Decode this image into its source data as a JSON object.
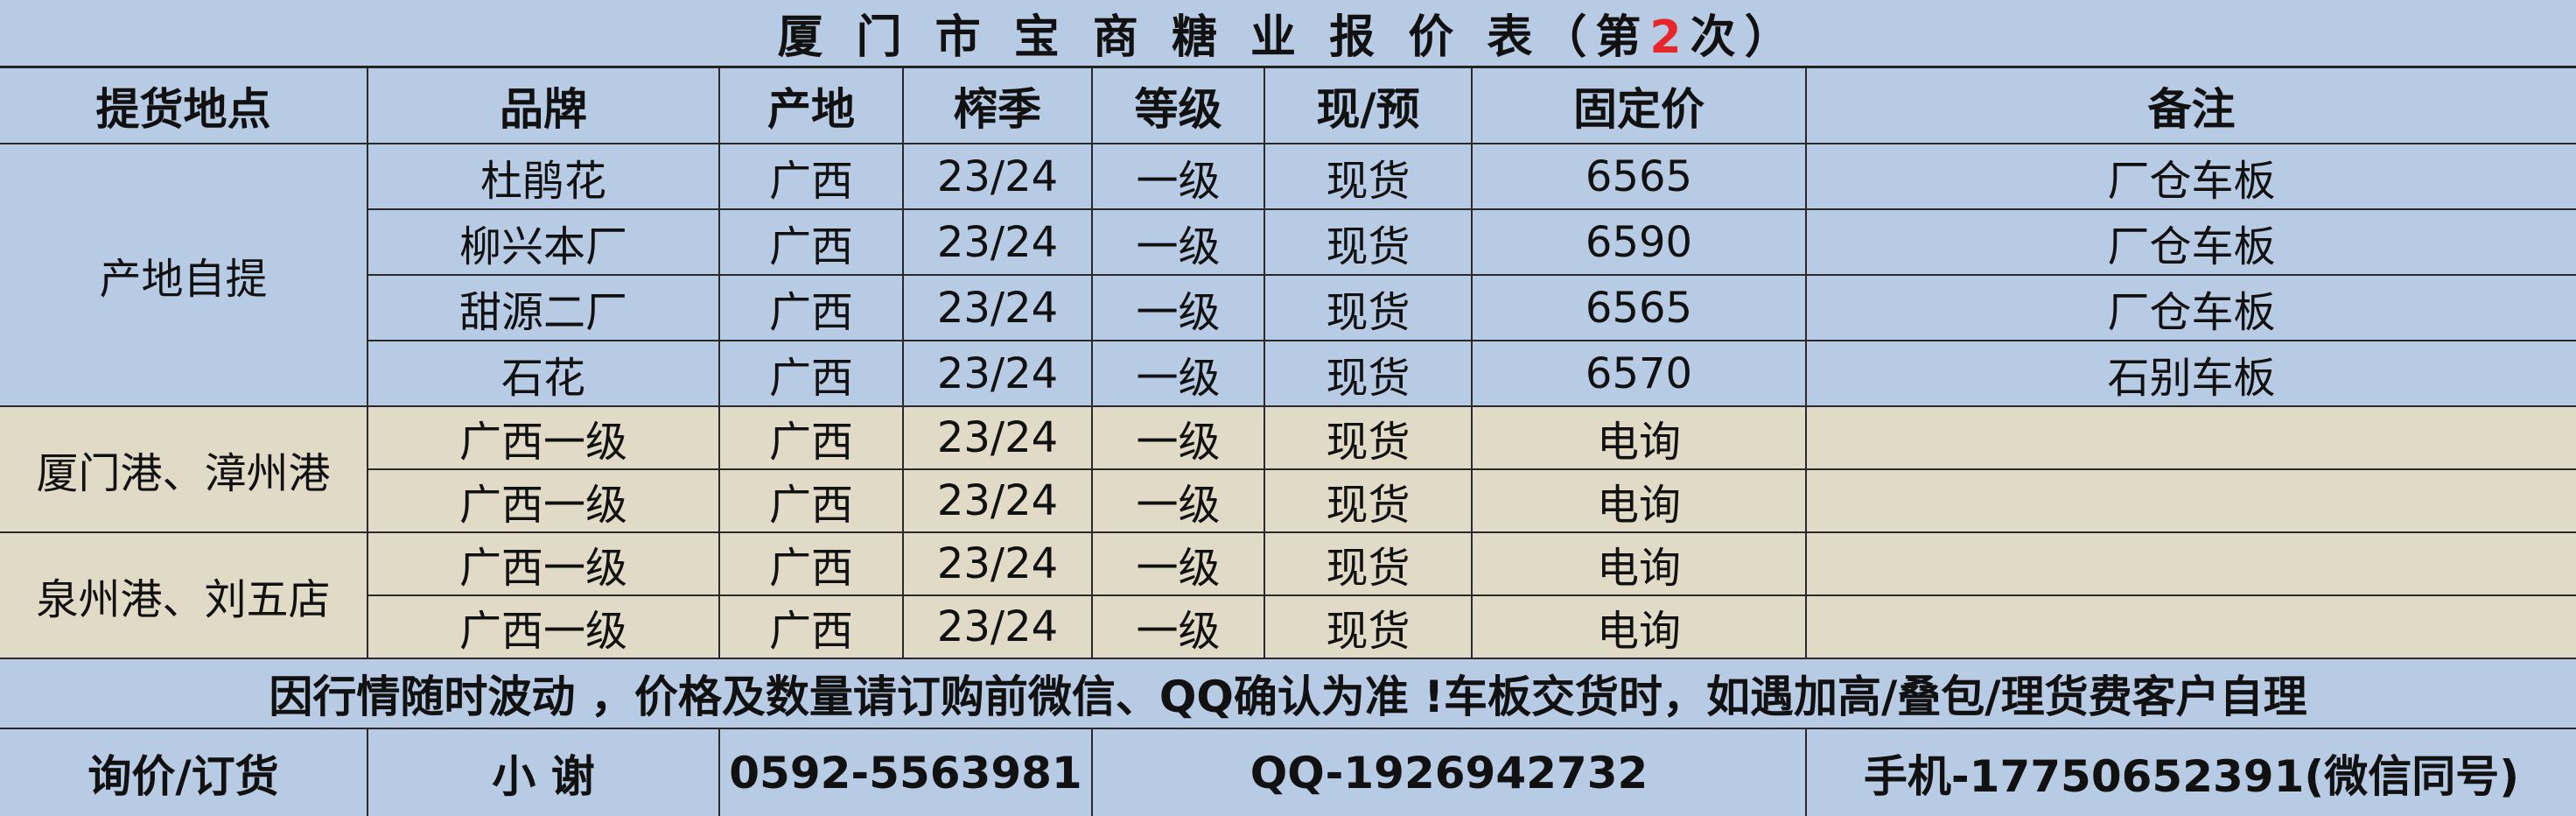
{
  "title": {
    "prefix": "厦 门 市 宝 商 糖 业 报 价 表（第",
    "number": "2",
    "suffix": "次）",
    "number_color": "#e8262a"
  },
  "headers": [
    "提货地点",
    "品牌",
    "产地",
    "榨季",
    "等级",
    "现/预",
    "固定价",
    "备注"
  ],
  "groups": [
    {
      "location": "产地自提",
      "rows": [
        {
          "brand": "杜鹃花",
          "origin": "广西",
          "season": "23/24",
          "grade": "一级",
          "type": "现货",
          "price": "6565",
          "note": "厂仓车板"
        },
        {
          "brand": "柳兴本厂",
          "origin": "广西",
          "season": "23/24",
          "grade": "一级",
          "type": "现货",
          "price": "6590",
          "note": "厂仓车板"
        },
        {
          "brand": "甜源二厂",
          "origin": "广西",
          "season": "23/24",
          "grade": "一级",
          "type": "现货",
          "price": "6565",
          "note": "厂仓车板"
        },
        {
          "brand": "石花",
          "origin": "广西",
          "season": "23/24",
          "grade": "一级",
          "type": "现货",
          "price": "6570",
          "note": "石别车板"
        }
      ]
    },
    {
      "location": "厦门港、漳州港",
      "rows": [
        {
          "brand": "广西一级",
          "origin": "广西",
          "season": "23/24",
          "grade": "一级",
          "type": "现货",
          "price": "电询",
          "note": ""
        },
        {
          "brand": "广西一级",
          "origin": "广西",
          "season": "23/24",
          "grade": "一级",
          "type": "现货",
          "price": "电询",
          "note": ""
        }
      ]
    },
    {
      "location": "泉州港、刘五店",
      "rows": [
        {
          "brand": "广西一级",
          "origin": "广西",
          "season": "23/24",
          "grade": "一级",
          "type": "现货",
          "price": "电询",
          "note": ""
        },
        {
          "brand": "广西一级",
          "origin": "广西",
          "season": "23/24",
          "grade": "一级",
          "type": "现货",
          "price": "电询",
          "note": ""
        }
      ]
    }
  ],
  "notice": "因行情随时波动 ，价格及数量请订购前微信、QQ确认为准 !车板交货时，如遇加高/叠包/理货费客户自理",
  "contact": {
    "label": "询价/订货",
    "name": "小 谢",
    "phone": "0592-5563981",
    "qq": "QQ-1926942732",
    "mobile": "手机-17750652391(微信同号)"
  },
  "colors": {
    "blue_bg": "#b8cbe4",
    "beige_bg": "#e0dac6"
  }
}
